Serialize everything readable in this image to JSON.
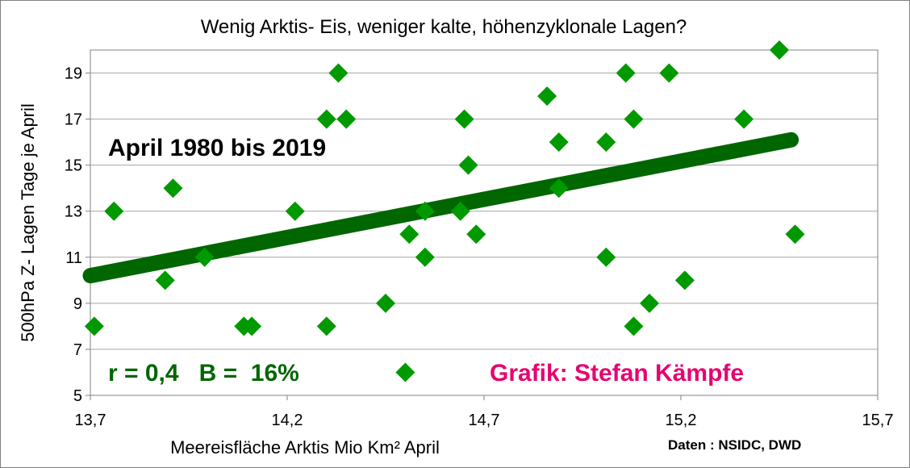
{
  "chart_data": {
    "type": "scatter",
    "title": "Wenig Arktis- Eis, weniger kalte, höhenzyklonale Lagen?",
    "xlabel": "Meereisfläche Arktis Mio Km² April",
    "ylabel": "500hPa Z- Lagen Tage je April",
    "xlim": [
      13.7,
      15.7
    ],
    "ylim": [
      5,
      20
    ],
    "x_ticks": [
      13.7,
      14.2,
      14.7,
      15.2,
      15.7
    ],
    "x_tick_labels": [
      "13,7",
      "14,2",
      "14,7",
      "15,2",
      "15,7"
    ],
    "y_ticks": [
      5,
      7,
      9,
      11,
      13,
      15,
      17,
      19
    ],
    "y_tick_labels": [
      "5",
      "7",
      "9",
      "11",
      "13",
      "15",
      "17",
      "19"
    ],
    "grid": "horizontal",
    "marker_color": "#009900",
    "trend_color": "#006600",
    "points": [
      {
        "x": 13.71,
        "y": 8
      },
      {
        "x": 13.76,
        "y": 13
      },
      {
        "x": 13.89,
        "y": 10
      },
      {
        "x": 13.91,
        "y": 14
      },
      {
        "x": 13.99,
        "y": 11
      },
      {
        "x": 14.09,
        "y": 8
      },
      {
        "x": 14.11,
        "y": 8
      },
      {
        "x": 14.22,
        "y": 13
      },
      {
        "x": 14.3,
        "y": 17
      },
      {
        "x": 14.3,
        "y": 8
      },
      {
        "x": 14.33,
        "y": 19
      },
      {
        "x": 14.35,
        "y": 17
      },
      {
        "x": 14.45,
        "y": 9
      },
      {
        "x": 14.5,
        "y": 6
      },
      {
        "x": 14.51,
        "y": 12
      },
      {
        "x": 14.55,
        "y": 11
      },
      {
        "x": 14.55,
        "y": 13
      },
      {
        "x": 14.64,
        "y": 13
      },
      {
        "x": 14.65,
        "y": 17
      },
      {
        "x": 14.66,
        "y": 15
      },
      {
        "x": 14.68,
        "y": 12
      },
      {
        "x": 14.86,
        "y": 18
      },
      {
        "x": 14.89,
        "y": 16
      },
      {
        "x": 14.89,
        "y": 14
      },
      {
        "x": 15.01,
        "y": 16
      },
      {
        "x": 15.01,
        "y": 11
      },
      {
        "x": 15.06,
        "y": 19
      },
      {
        "x": 15.08,
        "y": 17
      },
      {
        "x": 15.08,
        "y": 8
      },
      {
        "x": 15.12,
        "y": 9
      },
      {
        "x": 15.17,
        "y": 19
      },
      {
        "x": 15.21,
        "y": 10
      },
      {
        "x": 15.36,
        "y": 17
      },
      {
        "x": 15.45,
        "y": 20
      },
      {
        "x": 15.49,
        "y": 12
      }
    ],
    "trendline": {
      "x": [
        13.7,
        15.48
      ],
      "y": [
        10.2,
        16.1
      ]
    }
  },
  "annotations": {
    "period": "April 1980 bis 2019",
    "stats": "r = 0,4   B =  16%",
    "credit": "Grafik: Stefan Kämpfe",
    "source": "Daten : NSIDC, DWD"
  },
  "colors": {
    "period": "#000000",
    "stats": "#006600",
    "credit": "#e8006e",
    "source": "#000000"
  }
}
